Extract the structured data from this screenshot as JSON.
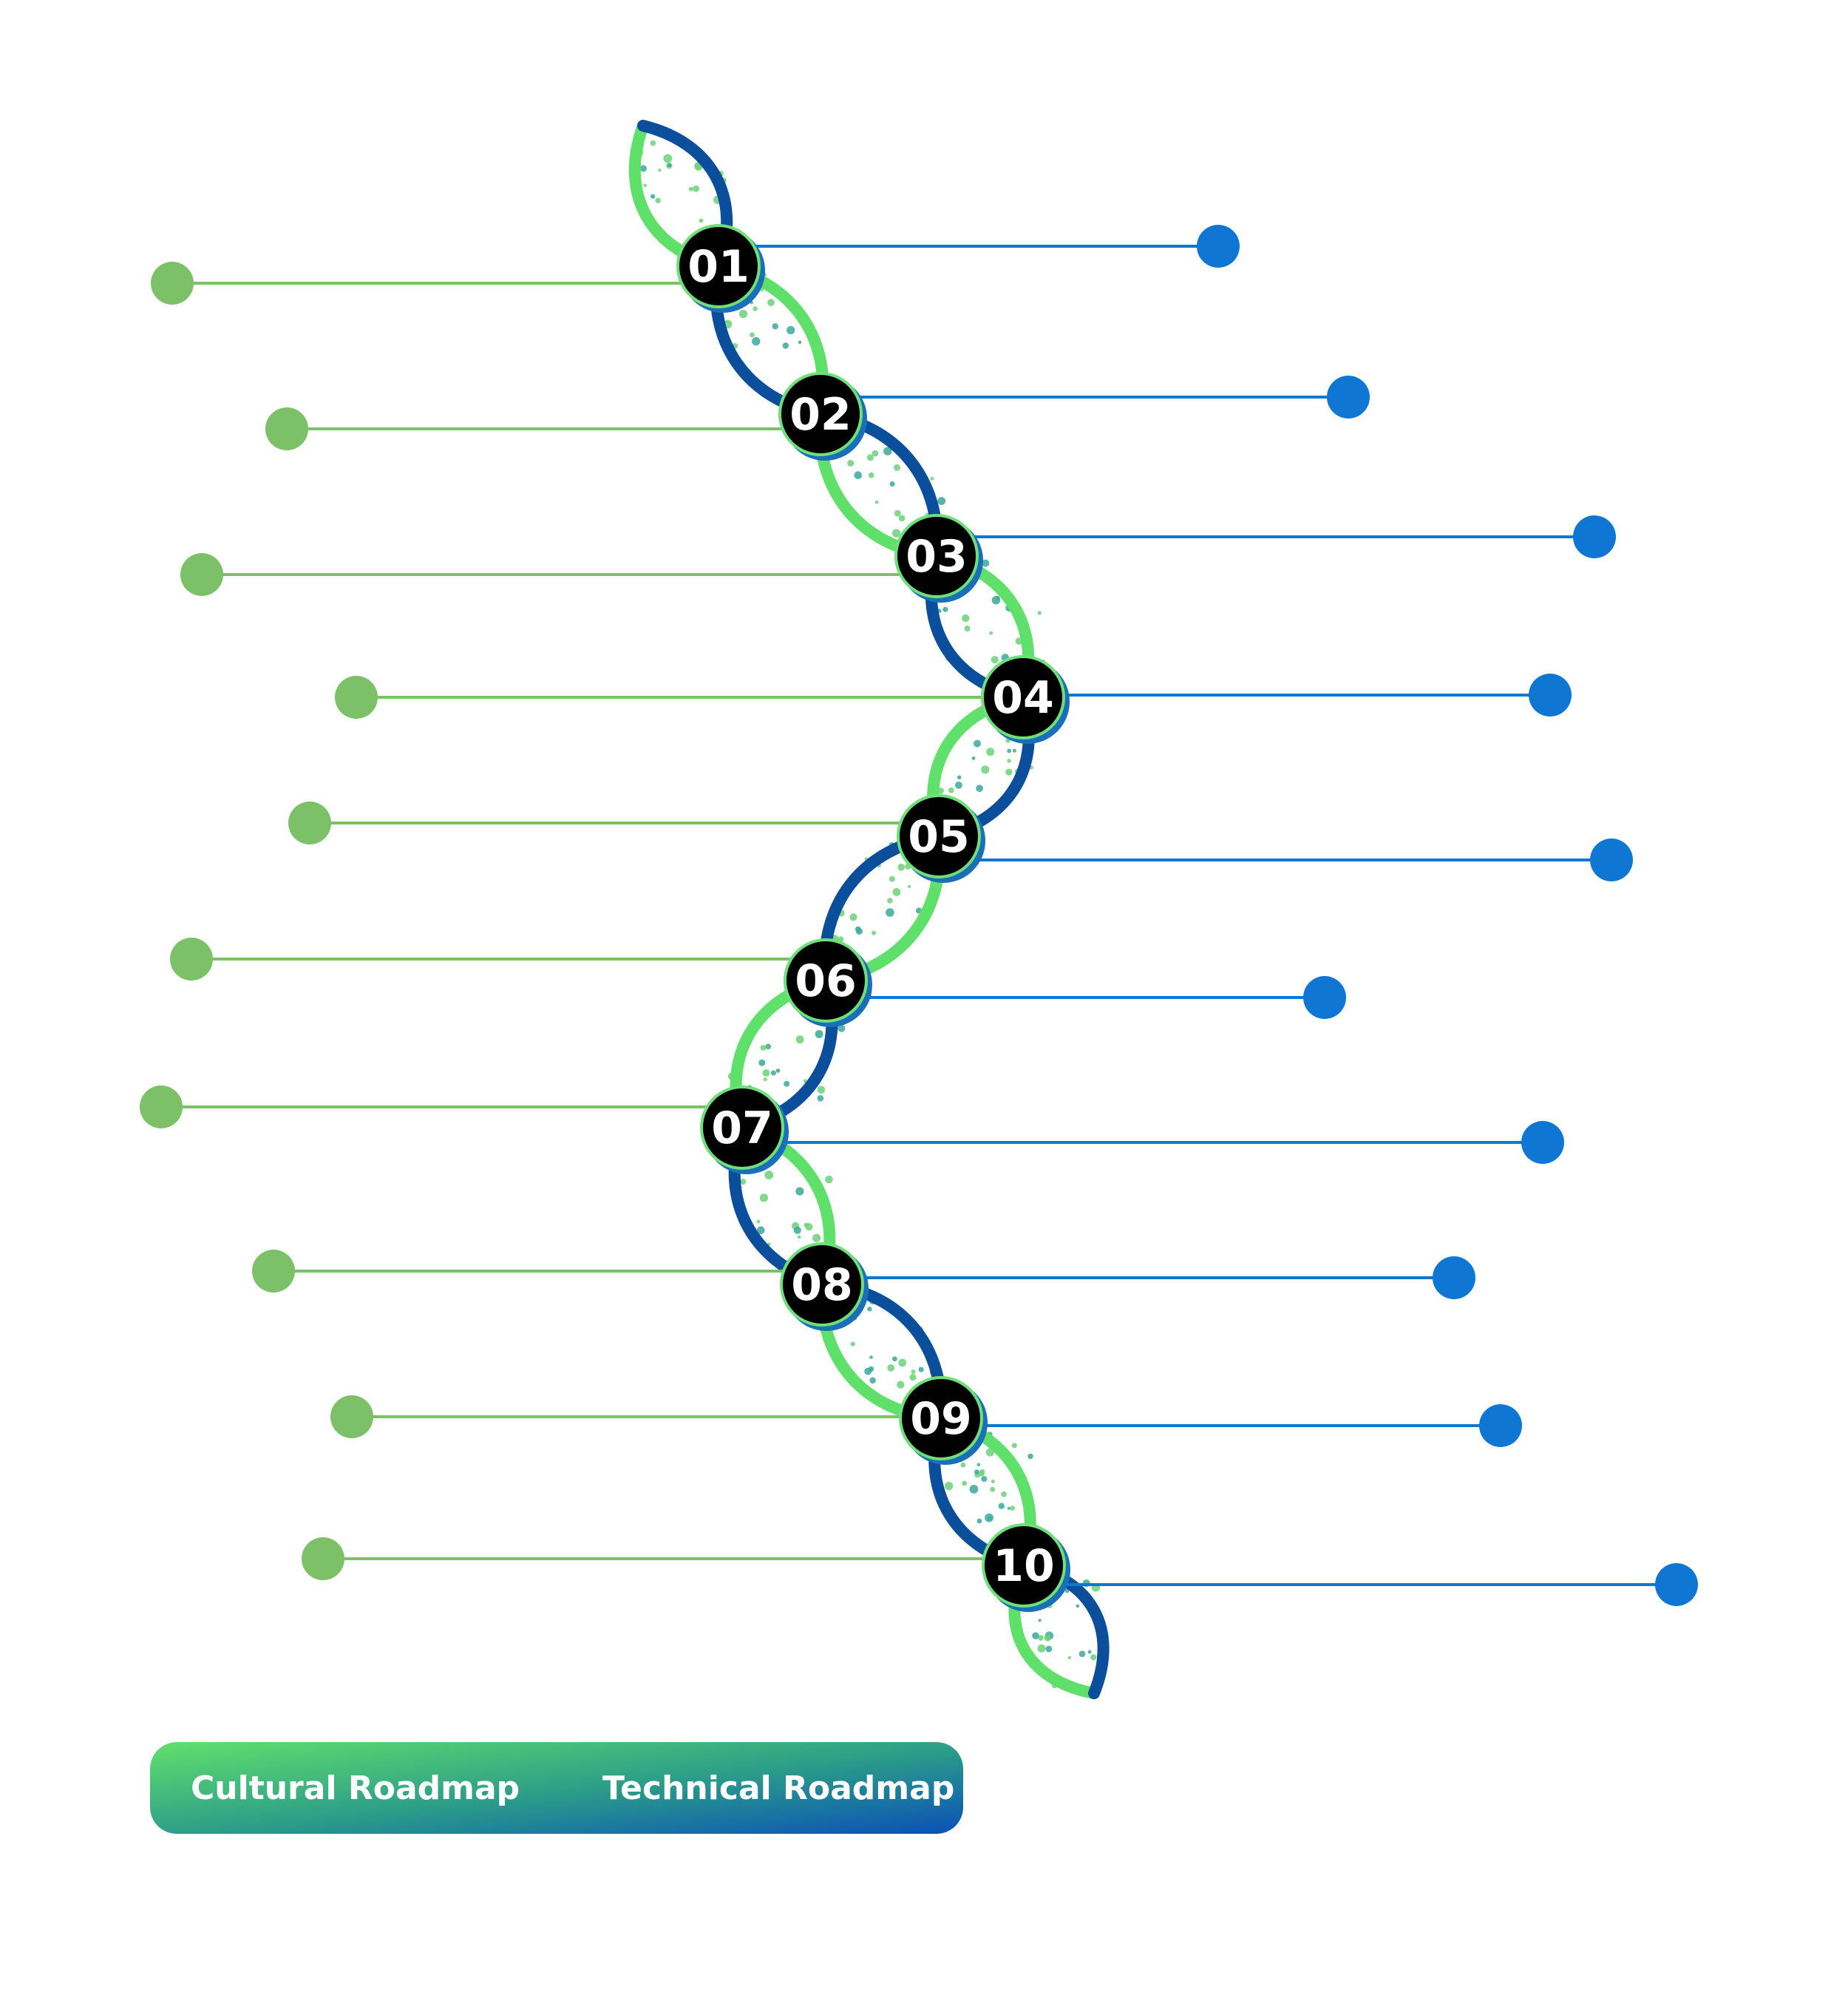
{
  "colors": {
    "cultural": "#7cc167",
    "technical": "#0f77d3",
    "strand_green": "#5ee06a",
    "strand_blue": "#0b4f9c",
    "node_fill": "#000000",
    "legend_start": "#62df6c",
    "legend_end": "#0a50b8"
  },
  "steps": [
    {
      "label": "01"
    },
    {
      "label": "02"
    },
    {
      "label": "03"
    },
    {
      "label": "04"
    },
    {
      "label": "05"
    },
    {
      "label": "06"
    },
    {
      "label": "07"
    },
    {
      "label": "08"
    },
    {
      "label": "09"
    },
    {
      "label": "10"
    }
  ],
  "legend": {
    "cultural_label": "Cultural Roadmap",
    "technical_label": "Technical Roadmap"
  }
}
